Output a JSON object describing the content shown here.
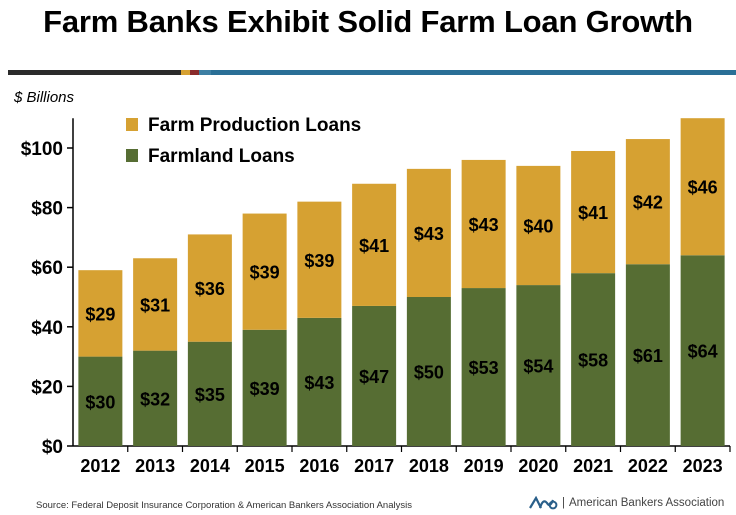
{
  "title": "Farm Banks Exhibit Solid Farm Loan Growth",
  "unit_label": "$ Billions",
  "source": "Source: Federal Deposit Insurance Corporation & American Bankers Association Analysis",
  "brand": {
    "name": "American Bankers Association",
    "logo_icon": "aba-logo-icon",
    "separator": "|"
  },
  "colors": {
    "farmland": "#566d33",
    "production": "#d6a132",
    "rule": [
      "#2b2b2b",
      "#d6a132",
      "#8a2b2b",
      "#3d7fa3",
      "#2a6f96"
    ]
  },
  "chart_data": {
    "type": "bar",
    "stacked": true,
    "categories": [
      "2012",
      "2013",
      "2014",
      "2015",
      "2016",
      "2017",
      "2018",
      "2019",
      "2020",
      "2021",
      "2022",
      "2023"
    ],
    "series": [
      {
        "name": "Farmland Loans",
        "values": [
          30,
          32,
          35,
          39,
          43,
          47,
          50,
          53,
          54,
          58,
          61,
          64
        ],
        "labels": [
          "$30",
          "$32",
          "$35",
          "$39",
          "$43",
          "$47",
          "$50",
          "$53",
          "$54",
          "$58",
          "$61",
          "$64"
        ]
      },
      {
        "name": "Farm Production Loans",
        "values": [
          29,
          31,
          36,
          39,
          39,
          41,
          43,
          43,
          40,
          41,
          42,
          46
        ],
        "labels": [
          "$29",
          "$31",
          "$36",
          "$39",
          "$39",
          "$41",
          "$43",
          "$43",
          "$40",
          "$41",
          "$42",
          "$46"
        ]
      }
    ],
    "yticks": [
      "$0",
      "$20",
      "$40",
      "$60",
      "$80",
      "$100"
    ],
    "ytick_values": [
      0,
      20,
      40,
      60,
      80,
      100
    ],
    "ylim": [
      0,
      110
    ],
    "ylabel": "$ Billions",
    "xlabel": "",
    "legend_position": "top-left",
    "legend_order": [
      "Farm Production Loans",
      "Farmland Loans"
    ],
    "grid": false
  }
}
